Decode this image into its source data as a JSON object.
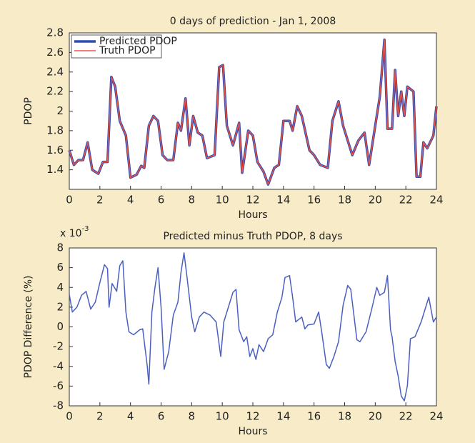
{
  "chart_data": [
    {
      "type": "line",
      "title": "0 days of prediction - Jan 1, 2008",
      "x_label": "Hours",
      "y_label": "PDOP",
      "xlim": [
        0,
        24
      ],
      "xticks": [
        0,
        2,
        4,
        6,
        8,
        10,
        12,
        14,
        16,
        18,
        20,
        22,
        24
      ],
      "ylim": [
        1.2,
        2.8
      ],
      "yticks": [
        1.4,
        1.6,
        1.8,
        2.0,
        2.2,
        2.4,
        2.6,
        2.8
      ],
      "legend": "upper left",
      "x": [
        0,
        0.3,
        0.6,
        0.9,
        1.2,
        1.5,
        1.9,
        2.2,
        2.5,
        2.75,
        3.0,
        3.3,
        3.7,
        4.0,
        4.4,
        4.7,
        4.9,
        5.2,
        5.5,
        5.8,
        6.1,
        6.4,
        6.8,
        7.1,
        7.3,
        7.6,
        7.85,
        8.1,
        8.4,
        8.7,
        9.0,
        9.5,
        9.8,
        10.05,
        10.3,
        10.7,
        11.1,
        11.3,
        11.7,
        12.0,
        12.3,
        12.7,
        13.0,
        13.4,
        13.7,
        14.0,
        14.4,
        14.6,
        14.9,
        15.2,
        15.7,
        16.0,
        16.4,
        16.9,
        17.2,
        17.6,
        17.9,
        18.5,
        18.9,
        19.3,
        19.6,
        20.0,
        20.3,
        20.6,
        20.8,
        21.1,
        21.3,
        21.5,
        21.7,
        21.9,
        22.1,
        22.5,
        22.7,
        22.95,
        23.15,
        23.4,
        23.8,
        24
      ],
      "series": [
        {
          "name": "Predicted PDOP",
          "color": "#2f4fb0",
          "width": 3.5,
          "values": [
            1.6,
            1.45,
            1.5,
            1.5,
            1.68,
            1.4,
            1.36,
            1.48,
            1.48,
            2.35,
            2.25,
            1.9,
            1.75,
            1.32,
            1.35,
            1.44,
            1.42,
            1.85,
            1.95,
            1.9,
            1.55,
            1.5,
            1.5,
            1.88,
            1.8,
            2.13,
            1.65,
            1.95,
            1.78,
            1.75,
            1.52,
            1.55,
            2.45,
            2.47,
            1.85,
            1.65,
            1.88,
            1.37,
            1.8,
            1.75,
            1.48,
            1.38,
            1.25,
            1.42,
            1.45,
            1.9,
            1.9,
            1.8,
            2.05,
            1.95,
            1.6,
            1.55,
            1.45,
            1.42,
            1.9,
            2.1,
            1.85,
            1.55,
            1.7,
            1.78,
            1.45,
            1.85,
            2.15,
            2.73,
            1.82,
            1.82,
            2.42,
            1.95,
            2.2,
            1.95,
            2.25,
            2.2,
            1.33,
            1.33,
            1.68,
            1.62,
            1.75,
            2.05
          ]
        },
        {
          "name": "Truth PDOP",
          "color": "#e8504a",
          "width": 1.5,
          "values": [
            1.6,
            1.45,
            1.5,
            1.5,
            1.68,
            1.4,
            1.36,
            1.48,
            1.48,
            2.35,
            2.25,
            1.9,
            1.75,
            1.32,
            1.35,
            1.44,
            1.42,
            1.85,
            1.95,
            1.9,
            1.55,
            1.5,
            1.5,
            1.88,
            1.8,
            2.13,
            1.65,
            1.95,
            1.78,
            1.75,
            1.52,
            1.55,
            2.45,
            2.47,
            1.85,
            1.65,
            1.88,
            1.37,
            1.8,
            1.75,
            1.48,
            1.38,
            1.25,
            1.42,
            1.45,
            1.9,
            1.9,
            1.8,
            2.05,
            1.95,
            1.6,
            1.55,
            1.45,
            1.42,
            1.9,
            2.1,
            1.85,
            1.55,
            1.7,
            1.78,
            1.45,
            1.85,
            2.15,
            2.73,
            1.82,
            1.82,
            2.42,
            1.95,
            2.2,
            1.95,
            2.25,
            2.2,
            1.33,
            1.33,
            1.68,
            1.62,
            1.75,
            2.05
          ]
        }
      ]
    },
    {
      "type": "line",
      "title": "Predicted minus Truth PDOP, 8 days",
      "x_label": "Hours",
      "y_label": "PDOP Difference (%)",
      "y_scale_base": "x 10",
      "y_scale_exponent": "-3",
      "xlim": [
        0,
        24
      ],
      "xticks": [
        0,
        2,
        4,
        6,
        8,
        10,
        12,
        14,
        16,
        18,
        20,
        22,
        24
      ],
      "ylim": [
        -8,
        8
      ],
      "yticks": [
        -8,
        -6,
        -4,
        -2,
        0,
        2,
        4,
        6,
        8
      ],
      "x": [
        0,
        0.2,
        0.5,
        0.8,
        1.1,
        1.4,
        1.7,
        2.0,
        2.3,
        2.5,
        2.6,
        2.8,
        3.1,
        3.3,
        3.5,
        3.7,
        3.9,
        4.2,
        4.6,
        4.8,
        5.1,
        5.2,
        5.4,
        5.6,
        5.8,
        6.0,
        6.2,
        6.5,
        6.8,
        7.1,
        7.3,
        7.5,
        7.7,
        8.0,
        8.2,
        8.5,
        8.8,
        9.2,
        9.6,
        9.9,
        10.1,
        10.4,
        10.7,
        10.9,
        11.1,
        11.4,
        11.6,
        11.8,
        12.0,
        12.2,
        12.4,
        12.7,
        13.0,
        13.3,
        13.6,
        13.9,
        14.1,
        14.4,
        14.6,
        14.8,
        15.2,
        15.4,
        15.6,
        16.0,
        16.3,
        16.5,
        16.8,
        17.0,
        17.3,
        17.6,
        17.9,
        18.2,
        18.4,
        18.8,
        19.0,
        19.4,
        19.8,
        20.1,
        20.3,
        20.6,
        20.8,
        21.0,
        21.1,
        21.3,
        21.5,
        21.7,
        21.9,
        22.1,
        22.3,
        22.6,
        23.0,
        23.3,
        23.5,
        23.8,
        24
      ],
      "series": [
        {
          "color": "#4a5fc0",
          "width": 1.5,
          "values": [
            3.3,
            1.5,
            2,
            3.2,
            3.6,
            1.8,
            2.5,
            4.5,
            6.3,
            5.9,
            2,
            4.4,
            3.6,
            6.2,
            6.7,
            1.5,
            -0.5,
            -0.8,
            -0.3,
            -0.2,
            -4,
            -5.8,
            1.5,
            4,
            6.0,
            2,
            -4.3,
            -2.5,
            1.2,
            2.5,
            5.5,
            7.5,
            5,
            1,
            -0.5,
            1,
            1.5,
            1.2,
            0.5,
            -3,
            0.5,
            2,
            3.5,
            3.8,
            -0.3,
            -1.5,
            -1,
            -3,
            -2.2,
            -3.3,
            -1.8,
            -2.5,
            -1.2,
            -0.8,
            1.5,
            3,
            5,
            5.2,
            3,
            0.5,
            1,
            -0.2,
            0.2,
            0.3,
            1.5,
            -0.5,
            -3.8,
            -4.2,
            -3,
            -1.5,
            2.2,
            4.2,
            3.8,
            -1.3,
            -1.5,
            -0.5,
            2,
            4,
            3.2,
            3.5,
            5.2,
            -0.3,
            -1,
            -3.5,
            -5,
            -7,
            -7.5,
            -6,
            -1.2,
            -1,
            0.5,
            2,
            3,
            0.5,
            1
          ]
        }
      ]
    }
  ]
}
